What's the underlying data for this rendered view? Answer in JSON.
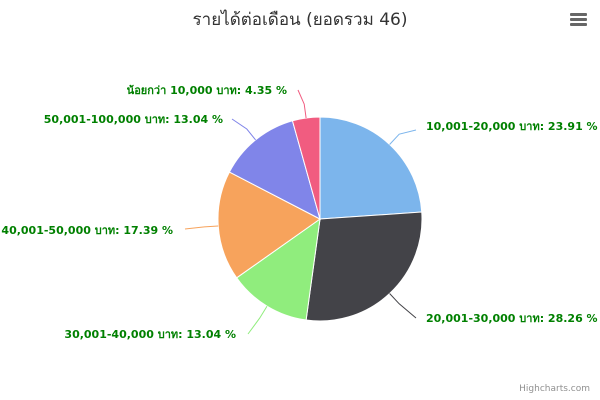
{
  "title": "รายได้ต่อเดือน (ยอดรวม 46)",
  "menu": {
    "icon": "hamburger-menu-icon"
  },
  "credits": "Highcharts.com",
  "chart_data": {
    "type": "pie",
    "title": "รายได้ต่อเดือน (ยอดรวม 46)",
    "unit": "บาท",
    "slices": [
      {
        "label": "10,001-20,000 บาท",
        "percent": 23.91,
        "display": "10,001-20,000 บาท: 23.91 %",
        "color": "#7cb5ec"
      },
      {
        "label": "20,001-30,000 บาท",
        "percent": 28.26,
        "display": "20,001-30,000 บาท: 28.26 %",
        "color": "#434348"
      },
      {
        "label": "30,001-40,000 บาท",
        "percent": 13.04,
        "display": "30,001-40,000 บาท: 13.04 %",
        "color": "#90ed7d"
      },
      {
        "label": "40,001-50,000 บาท",
        "percent": 17.39,
        "display": "40,001-50,000 บาท: 17.39 %",
        "color": "#f7a35c"
      },
      {
        "label": "50,001-100,000 บาท",
        "percent": 13.04,
        "display": "50,001-100,000 บาท: 13.04 %",
        "color": "#8085e9"
      },
      {
        "label": "น้อยกว่า 10,000 บาท",
        "percent": 4.35,
        "display": "น้อยกว่า 10,000 บาท: 4.35 %",
        "color": "#f15c80"
      }
    ],
    "data_label_color": "#008000"
  }
}
